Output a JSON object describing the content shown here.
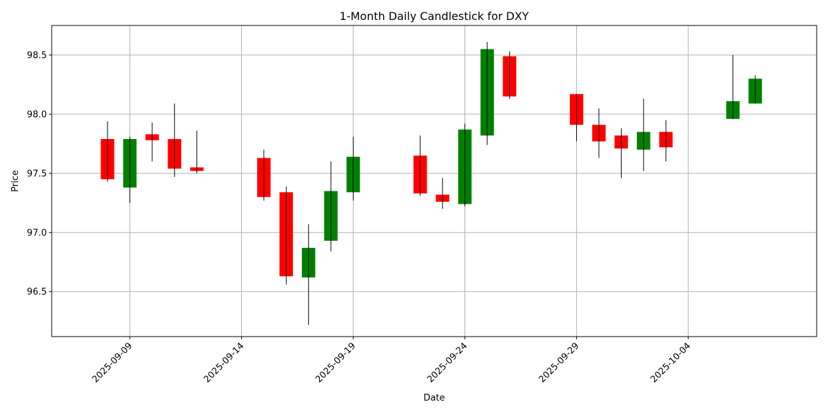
{
  "chart_data": {
    "type": "candlestick",
    "title": "1-Month Daily Candlestick for DXY",
    "xlabel": "Date",
    "ylabel": "Price",
    "grid": true,
    "xlim": [
      "2025-09-05T12:00",
      "2025-10-09T18:00"
    ],
    "ylim": [
      96.12,
      98.75
    ],
    "x_ticks": [
      "2025-09-09",
      "2025-09-14",
      "2025-09-19",
      "2025-09-24",
      "2025-09-29",
      "2025-10-04"
    ],
    "y_ticks": [
      96.5,
      97.0,
      97.5,
      98.0,
      98.5
    ],
    "y_tick_labels": [
      "96.5",
      "97.0",
      "97.5",
      "98.0",
      "98.5"
    ],
    "colors": {
      "up": "#008000",
      "down": "#ff0000",
      "wick": "#000000"
    },
    "candles": [
      {
        "date": "2025-09-08",
        "open": 97.79,
        "high": 97.94,
        "low": 97.43,
        "close": 97.45
      },
      {
        "date": "2025-09-09",
        "open": 97.38,
        "high": 97.81,
        "low": 97.25,
        "close": 97.79
      },
      {
        "date": "2025-09-10",
        "open": 97.83,
        "high": 97.93,
        "low": 97.6,
        "close": 97.78
      },
      {
        "date": "2025-09-11",
        "open": 97.79,
        "high": 98.09,
        "low": 97.47,
        "close": 97.54
      },
      {
        "date": "2025-09-12",
        "open": 97.55,
        "high": 97.86,
        "low": 97.5,
        "close": 97.52
      },
      {
        "date": "2025-09-15",
        "open": 97.63,
        "high": 97.7,
        "low": 97.27,
        "close": 97.3
      },
      {
        "date": "2025-09-16",
        "open": 97.34,
        "high": 97.39,
        "low": 96.56,
        "close": 96.63
      },
      {
        "date": "2025-09-17",
        "open": 96.62,
        "high": 97.07,
        "low": 96.22,
        "close": 96.87
      },
      {
        "date": "2025-09-18",
        "open": 96.93,
        "high": 97.6,
        "low": 96.84,
        "close": 97.35
      },
      {
        "date": "2025-09-19",
        "open": 97.34,
        "high": 97.81,
        "low": 97.27,
        "close": 97.64
      },
      {
        "date": "2025-09-22",
        "open": 97.65,
        "high": 97.82,
        "low": 97.31,
        "close": 97.33
      },
      {
        "date": "2025-09-23",
        "open": 97.32,
        "high": 97.46,
        "low": 97.2,
        "close": 97.26
      },
      {
        "date": "2025-09-24",
        "open": 97.24,
        "high": 97.92,
        "low": 97.22,
        "close": 97.87
      },
      {
        "date": "2025-09-25",
        "open": 97.82,
        "high": 98.61,
        "low": 97.74,
        "close": 98.55
      },
      {
        "date": "2025-09-26",
        "open": 98.49,
        "high": 98.53,
        "low": 98.13,
        "close": 98.15
      },
      {
        "date": "2025-09-29",
        "open": 98.17,
        "high": 98.17,
        "low": 97.77,
        "close": 97.91
      },
      {
        "date": "2025-09-30",
        "open": 97.91,
        "high": 98.05,
        "low": 97.63,
        "close": 97.77
      },
      {
        "date": "2025-10-01",
        "open": 97.82,
        "high": 97.88,
        "low": 97.46,
        "close": 97.71
      },
      {
        "date": "2025-10-02",
        "open": 97.7,
        "high": 98.13,
        "low": 97.52,
        "close": 97.85
      },
      {
        "date": "2025-10-03",
        "open": 97.85,
        "high": 97.95,
        "low": 97.6,
        "close": 97.72
      },
      {
        "date": "2025-10-06",
        "open": 97.96,
        "high": 98.5,
        "low": 97.96,
        "close": 98.11
      },
      {
        "date": "2025-10-07",
        "open": 98.09,
        "high": 98.33,
        "low": 98.09,
        "close": 98.3
      }
    ]
  }
}
